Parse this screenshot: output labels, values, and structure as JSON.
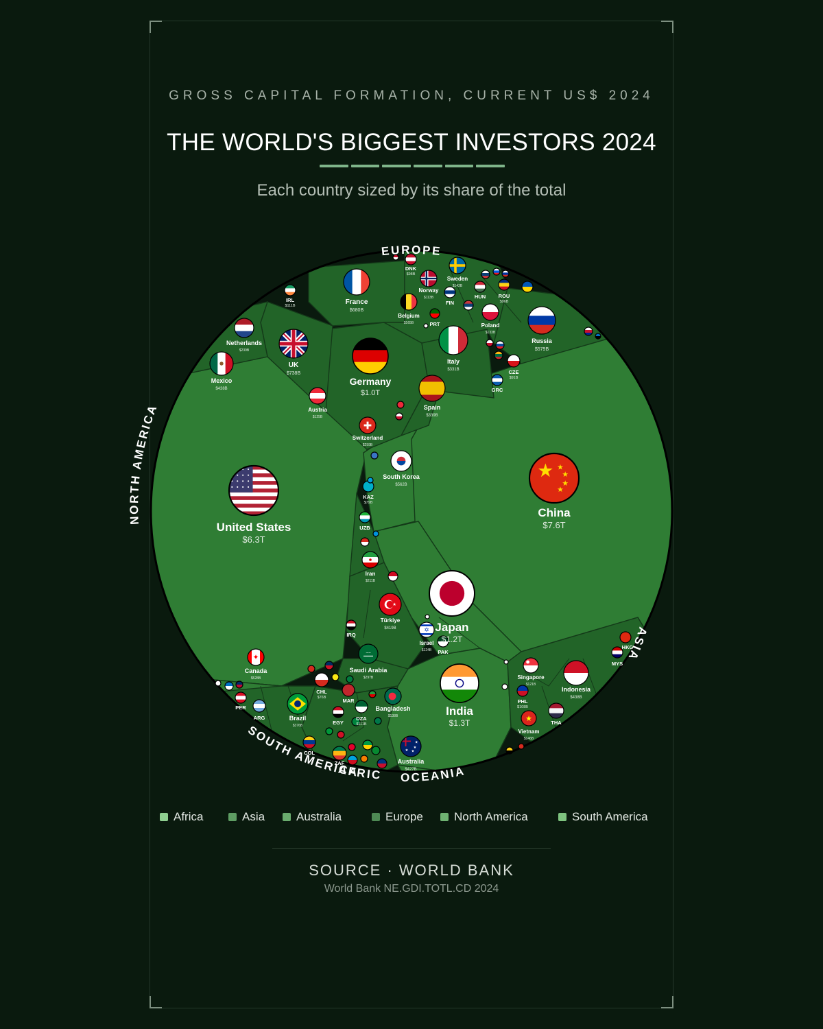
{
  "header": {
    "kicker": "GROSS CAPITAL FORMATION, CURRENT US$ 2024",
    "title": "THE WORLD'S BIGGEST INVESTORS 2024",
    "subtitle": "Each country sized by its share of the total"
  },
  "colors": {
    "background": "#0a1a0e",
    "cell_fill": "#2f7d34",
    "cell_fill_dark": "#226428",
    "cell_stroke": "#143a19",
    "accent": "#7fb58a"
  },
  "chart_data": {
    "type": "voronoi-treemap",
    "region_labels": [
      "EUROPE",
      "NORTH AMERICA",
      "SOUTH AMERICA",
      "AFRICA",
      "OCEANIA",
      "ASIA"
    ],
    "legend": [
      {
        "name": "Africa",
        "color": "#8fcf90"
      },
      {
        "name": "Asia",
        "color": "#5e9d63"
      },
      {
        "name": "Australia",
        "color": "#6aac6e"
      },
      {
        "name": "Europe",
        "color": "#4e8a54"
      },
      {
        "name": "North America",
        "color": "#6fb372"
      },
      {
        "name": "South America",
        "color": "#7ec37f"
      }
    ],
    "countries": [
      {
        "name": "China",
        "value_label": "$7.6T",
        "value_usd_billion": 7600,
        "region": "Asia",
        "flag": "china"
      },
      {
        "name": "United States",
        "value_label": "$6.3T",
        "value_usd_billion": 6300,
        "region": "North America",
        "flag": "usa"
      },
      {
        "name": "Japan",
        "value_label": "$1.2T",
        "value_usd_billion": 1200,
        "region": "Asia",
        "flag": "japan"
      },
      {
        "name": "India",
        "value_label": "$1.3T",
        "value_usd_billion": 1300,
        "region": "Asia",
        "flag": "india"
      },
      {
        "name": "Germany",
        "value_label": "$1.0T",
        "value_usd_billion": 1000,
        "region": "Europe",
        "flag": "germany"
      },
      {
        "name": "France",
        "value_label": "$680B",
        "value_usd_billion": 680,
        "region": "Europe",
        "flag": "france"
      },
      {
        "name": "UK",
        "value_label": "$738B",
        "value_usd_billion": 738,
        "region": "Europe",
        "flag": "uk"
      },
      {
        "name": "Russia",
        "value_label": "$579B",
        "value_usd_billion": 579,
        "region": "Europe",
        "flag": "russia"
      },
      {
        "name": "South Korea",
        "value_label": "$562B",
        "value_usd_billion": 562,
        "region": "Asia",
        "flag": "korea"
      },
      {
        "name": "Canada",
        "value_label": "$528B",
        "value_usd_billion": 528,
        "region": "North America",
        "flag": "canada"
      },
      {
        "name": "Indonesia",
        "value_label": "$438B",
        "value_usd_billion": 438,
        "region": "Asia",
        "flag": "indonesia"
      },
      {
        "name": "Mexico",
        "value_label": "$438B",
        "value_usd_billion": 438,
        "region": "North America",
        "flag": "mexico"
      },
      {
        "name": "Australia",
        "value_label": "$427B",
        "value_usd_billion": 427,
        "region": "Oceania",
        "flag": "australia"
      },
      {
        "name": "Türkiye",
        "value_label": "$419B",
        "value_usd_billion": 419,
        "region": "Asia",
        "flag": "turkey"
      },
      {
        "name": "Italy",
        "value_label": "$331B",
        "value_usd_billion": 331,
        "region": "Europe",
        "flag": "italy"
      },
      {
        "name": "Spain",
        "value_label": "$339B",
        "value_usd_billion": 339,
        "region": "Europe",
        "flag": "spain"
      },
      {
        "name": "Brazil",
        "value_label": "$376B",
        "value_usd_billion": 376,
        "region": "South America",
        "flag": "brazil"
      },
      {
        "name": "Saudi Arabia",
        "value_label": "$297B",
        "value_usd_billion": 297,
        "region": "Asia",
        "flag": "saudi"
      },
      {
        "name": "Switzerland",
        "value_label": "$259B",
        "value_usd_billion": 259,
        "region": "Europe",
        "flag": "switzerland"
      },
      {
        "name": "Netherlands",
        "value_label": "$239B",
        "value_usd_billion": 239,
        "region": "Europe",
        "flag": "netherlands"
      },
      {
        "name": "Bangladesh",
        "value_label": "$138B",
        "value_usd_billion": 138,
        "region": "Asia",
        "flag": "bangladesh"
      },
      {
        "name": "Iran",
        "value_label": "$211B",
        "value_usd_billion": 211,
        "region": "Asia",
        "flag": "iran"
      },
      {
        "name": "Belgium",
        "value_label": "$165B",
        "value_usd_billion": 165,
        "region": "Europe",
        "flag": "belgium"
      },
      {
        "name": "Poland",
        "value_label": "$133B",
        "value_usd_billion": 133,
        "region": "Europe",
        "flag": "poland"
      },
      {
        "name": "Sweden",
        "value_label": "$142B",
        "value_usd_billion": 142,
        "region": "Europe",
        "flag": "sweden"
      },
      {
        "name": "Singapore",
        "value_label": "$121B",
        "value_usd_billion": 121,
        "region": "Asia",
        "flag": "singapore"
      },
      {
        "name": "Vietnam",
        "value_label": "$146B",
        "value_usd_billion": 146,
        "region": "Asia",
        "flag": "vietnam"
      },
      {
        "name": "Austria",
        "value_label": "$125B",
        "value_usd_billion": 125,
        "region": "Europe",
        "flag": "austria"
      },
      {
        "name": "Norway",
        "value_label": "$113B",
        "value_usd_billion": 113,
        "region": "Europe",
        "flag": "norway"
      },
      {
        "name": "Israel",
        "value_label": "$124B",
        "value_usd_billion": 124,
        "region": "Asia",
        "flag": "israel"
      }
    ],
    "small_labels": [
      {
        "code": "DNK",
        "value_label": "$98B"
      },
      {
        "code": "IRL",
        "value_label": "$111B"
      },
      {
        "code": "FIN",
        "value_label": ""
      },
      {
        "code": "HUN",
        "value_label": ""
      },
      {
        "code": "ROU",
        "value_label": "$96B"
      },
      {
        "code": "PRT",
        "value_label": ""
      },
      {
        "code": "CZE",
        "value_label": "$91B"
      },
      {
        "code": "GRC",
        "value_label": ""
      },
      {
        "code": "KAZ",
        "value_label": "$79B"
      },
      {
        "code": "UZB",
        "value_label": ""
      },
      {
        "code": "IRQ",
        "value_label": ""
      },
      {
        "code": "PAK",
        "value_label": ""
      },
      {
        "code": "HKG",
        "value_label": ""
      },
      {
        "code": "MYS",
        "value_label": ""
      },
      {
        "code": "PHL",
        "value_label": "$108B"
      },
      {
        "code": "THA",
        "value_label": ""
      },
      {
        "code": "CHL",
        "value_label": "$76B"
      },
      {
        "code": "PER",
        "value_label": ""
      },
      {
        "code": "ARG",
        "value_label": ""
      },
      {
        "code": "COL",
        "value_label": ""
      },
      {
        "code": "EGY",
        "value_label": ""
      },
      {
        "code": "MAR",
        "value_label": ""
      },
      {
        "code": "DZA",
        "value_label": "$111B"
      },
      {
        "code": "ZAF",
        "value_label": ""
      }
    ]
  },
  "footer": {
    "source": "SOURCE · WORLD BANK",
    "detail": "World Bank NE.GDI.TOTL.CD 2024"
  }
}
